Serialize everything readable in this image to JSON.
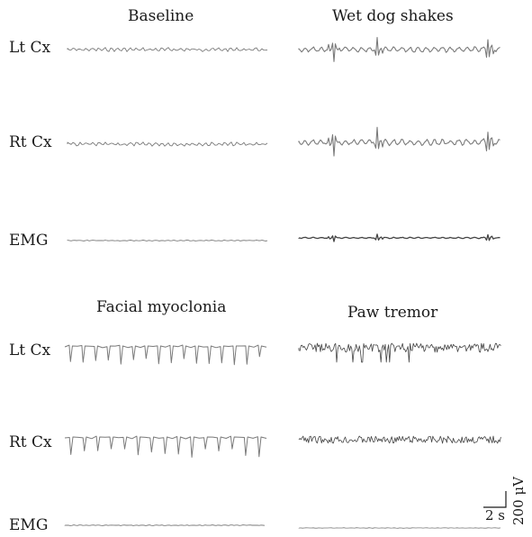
{
  "panels": [
    {
      "title": "Baseline",
      "pattern": "flat"
    },
    {
      "title": "Wet dog shakes",
      "pattern": "spikes"
    },
    {
      "title": "Facial myoclonia",
      "pattern": "myoclonic"
    },
    {
      "title": "Paw tremor",
      "pattern": "tremor"
    }
  ],
  "row_labels": [
    "Lt Cx",
    "Rt Cx",
    "EMG",
    "Lt Cx",
    "Rt Cx",
    "EMG"
  ],
  "scale_bar": {
    "time": "2 s",
    "amplitude": "200 μV"
  },
  "colors": {
    "trace": "#7a7a7a",
    "trace_dark": "#444444"
  }
}
